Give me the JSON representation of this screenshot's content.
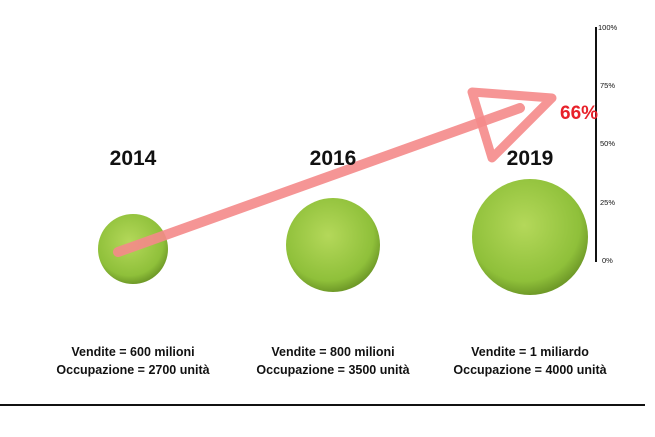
{
  "items": [
    {
      "year": "2014",
      "sales": "Vendite = 600 milioni",
      "employment": "Occupazione = 2700 unità"
    },
    {
      "year": "2016",
      "sales": "Vendite = 800 milioni",
      "employment": "Occupazione = 3500 unità"
    },
    {
      "year": "2019",
      "sales": "Vendite = 1 miliardo",
      "employment": "Occupazione = 4000 unità"
    }
  ],
  "axis": {
    "ticks": [
      "100%",
      "75%",
      "50%",
      "25%",
      "0%"
    ]
  },
  "annotation": "66%"
}
